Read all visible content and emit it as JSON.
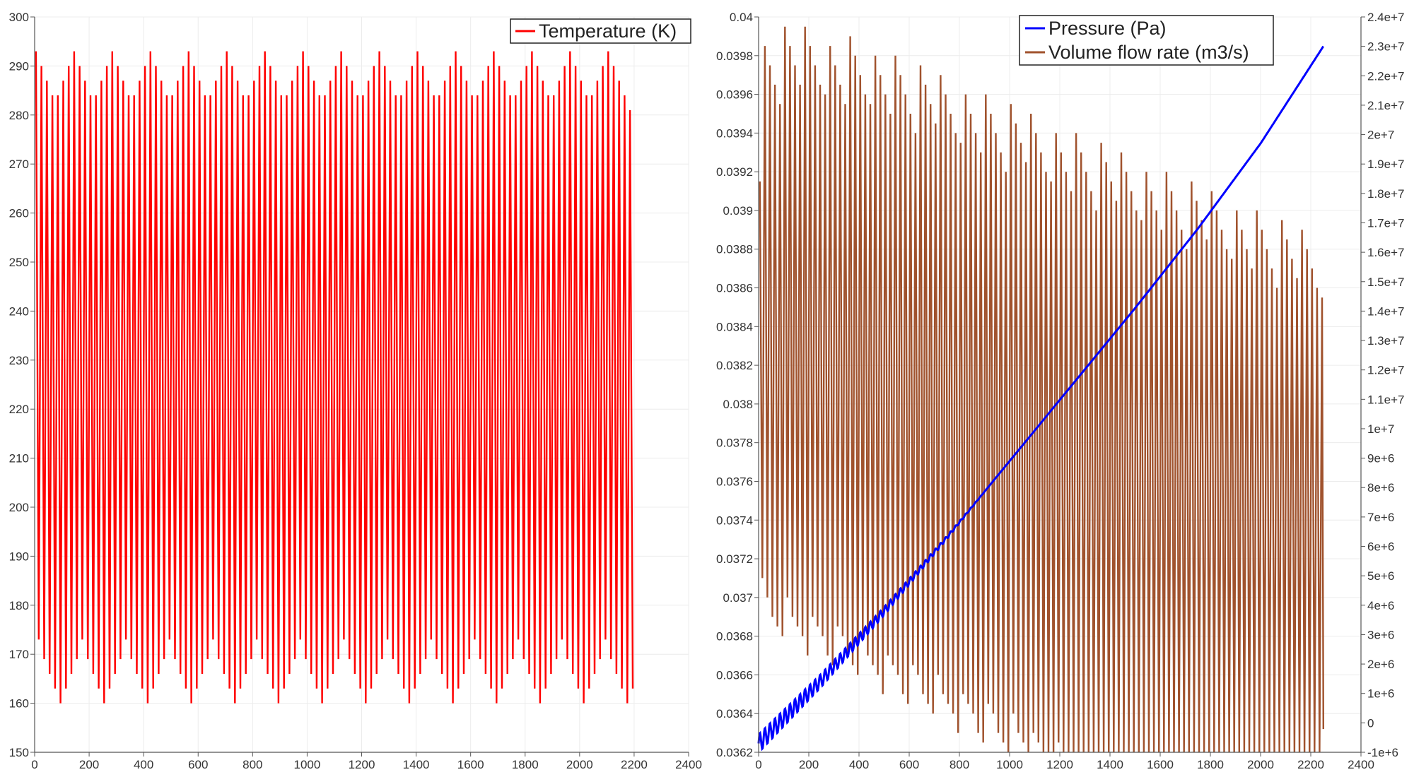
{
  "chart_data": [
    {
      "type": "line",
      "title": "",
      "xlabel": "",
      "ylabel": "",
      "xlim": [
        0,
        2400
      ],
      "ylim": [
        150,
        300
      ],
      "x_ticks": [
        0,
        200,
        400,
        600,
        800,
        1000,
        1200,
        1400,
        1600,
        1800,
        2000,
        2200,
        2400
      ],
      "y_ticks": [
        150,
        160,
        170,
        180,
        190,
        200,
        210,
        220,
        230,
        240,
        250,
        260,
        270,
        280,
        290,
        300
      ],
      "grid": true,
      "legend_position": "top-right",
      "series": [
        {
          "name": "Temperature (K)",
          "color": "#ff0000",
          "x_range": [
            0,
            2250
          ],
          "oscillation_period": 20,
          "peak_values": [
            293,
            290,
            287,
            284,
            284,
            287,
            290,
            293,
            290,
            287,
            284,
            284,
            287,
            290,
            293,
            290,
            287,
            284,
            284,
            287,
            290,
            293,
            290,
            287,
            284,
            284,
            287,
            290,
            293,
            290,
            287,
            284,
            284,
            287,
            290,
            293,
            290,
            287,
            284,
            284,
            287,
            290,
            293,
            290,
            287,
            284,
            284,
            287,
            290,
            293,
            290,
            287,
            284,
            284,
            287,
            290,
            293,
            290,
            287,
            284,
            284,
            287,
            290,
            293,
            290,
            287,
            284,
            284,
            287,
            290,
            293,
            290,
            287,
            284,
            284,
            287,
            290,
            293,
            290,
            287,
            284,
            284,
            287,
            290,
            293,
            290,
            287,
            284,
            284,
            287,
            290,
            293,
            290,
            287,
            284,
            284,
            287,
            290,
            293,
            290,
            287,
            284,
            284,
            287,
            290,
            293,
            290,
            287,
            284,
            281
          ],
          "trough_values": [
            173,
            169,
            166,
            163,
            160,
            163,
            166,
            169,
            173,
            169,
            166,
            163,
            160,
            163,
            166,
            169,
            173,
            169,
            166,
            163,
            160,
            163,
            166,
            169,
            173,
            169,
            166,
            163,
            160,
            163,
            166,
            169,
            173,
            169,
            166,
            163,
            160,
            163,
            166,
            169,
            173,
            169,
            166,
            163,
            160,
            163,
            166,
            169,
            173,
            169,
            166,
            163,
            160,
            163,
            166,
            169,
            173,
            169,
            166,
            163,
            160,
            163,
            166,
            169,
            173,
            169,
            166,
            163,
            160,
            163,
            166,
            169,
            173,
            169,
            166,
            163,
            160,
            163,
            166,
            169,
            173,
            169,
            166,
            163,
            160,
            163,
            166,
            169,
            173,
            169,
            166,
            163,
            160,
            163,
            166,
            169,
            173,
            169,
            166,
            163,
            160,
            163,
            166,
            169,
            173,
            169,
            166,
            163,
            160,
            163,
            166
          ]
        }
      ]
    },
    {
      "type": "line",
      "title": "",
      "xlabel": "",
      "ylabel": "",
      "xlim": [
        0,
        2400
      ],
      "ylim": [
        0.0362,
        0.04
      ],
      "y2lim": [
        -1000000,
        24000000
      ],
      "x_ticks": [
        0,
        200,
        400,
        600,
        800,
        1000,
        1200,
        1400,
        1600,
        1800,
        2000,
        2200,
        2400
      ],
      "y_ticks": [
        "0.0362",
        "0.0364",
        "0.0366",
        "0.0368",
        "0.037",
        "0.0372",
        "0.0374",
        "0.0376",
        "0.0378",
        "0.038",
        "0.0382",
        "0.0384",
        "0.0386",
        "0.0388",
        "0.039",
        "0.0392",
        "0.0394",
        "0.0396",
        "0.0398",
        "0.04"
      ],
      "y2_ticks": [
        "-1e+6",
        "0",
        "1e+6",
        "2e+6",
        "3e+6",
        "4e+6",
        "5e+6",
        "6e+6",
        "7e+6",
        "8e+6",
        "9e+6",
        "1e+7",
        "1.1e+7",
        "1.2e+7",
        "1.3e+7",
        "1.4e+7",
        "1.5e+7",
        "1.6e+7",
        "1.7e+7",
        "1.8e+7",
        "1.9e+7",
        "2e+7",
        "2.1e+7",
        "2.2e+7",
        "2.3e+7",
        "2.4e+7"
      ],
      "grid": true,
      "legend_position": "top-right",
      "series": [
        {
          "name": "Pressure (Pa)",
          "color": "#0000ff",
          "axis": "right",
          "x": [
            0,
            250,
            500,
            750,
            1000,
            1250,
            1500,
            1750,
            2000,
            2250
          ],
          "values": [
            -700000,
            1450000,
            3800000,
            6300000,
            8900000,
            11500000,
            14100000,
            16800000,
            19700000,
            23000000
          ],
          "ripple_period": 20
        },
        {
          "name": "Volume flow rate (m3/s)",
          "color": "#a0522d",
          "axis": "left",
          "x_range": [
            0,
            2250
          ],
          "oscillation_period": 20,
          "peak_values": [
            0.03915,
            0.03985,
            0.03975,
            0.03965,
            0.03955,
            0.03995,
            0.03985,
            0.03975,
            0.03965,
            0.03995,
            0.03985,
            0.03975,
            0.03965,
            0.0396,
            0.03985,
            0.03975,
            0.03965,
            0.03955,
            0.0399,
            0.0398,
            0.0397,
            0.0396,
            0.03955,
            0.0398,
            0.0397,
            0.0396,
            0.0395,
            0.0398,
            0.0397,
            0.0396,
            0.0395,
            0.0394,
            0.03975,
            0.03965,
            0.03955,
            0.03945,
            0.0397,
            0.0396,
            0.0395,
            0.0394,
            0.03935,
            0.0396,
            0.0395,
            0.0394,
            0.0393,
            0.0396,
            0.0395,
            0.0394,
            0.0393,
            0.0392,
            0.03955,
            0.03945,
            0.03935,
            0.03925,
            0.0395,
            0.0394,
            0.0393,
            0.0392,
            0.03915,
            0.0394,
            0.0393,
            0.0392,
            0.0391,
            0.0394,
            0.0393,
            0.0392,
            0.0391,
            0.039,
            0.03935,
            0.03925,
            0.03915,
            0.03905,
            0.0393,
            0.0392,
            0.0391,
            0.039,
            0.03895,
            0.0392,
            0.0391,
            0.039,
            0.0389,
            0.0392,
            0.0391,
            0.039,
            0.0389,
            0.0388,
            0.03915,
            0.03905,
            0.03895,
            0.03885,
            0.0391,
            0.039,
            0.0389,
            0.0388,
            0.03875,
            0.039,
            0.0389,
            0.0388,
            0.0387,
            0.039,
            0.0389,
            0.0388,
            0.0387,
            0.0386,
            0.03895,
            0.03885,
            0.03875,
            0.03865,
            0.0389,
            0.0388,
            0.0387,
            0.0386,
            0.03855
          ],
          "trough_values": [
            0.0371,
            0.037,
            0.0369,
            0.03685,
            0.0368,
            0.037,
            0.0369,
            0.03685,
            0.0368,
            0.0367,
            0.0369,
            0.03685,
            0.0368,
            0.0367,
            0.03665,
            0.03685,
            0.0368,
            0.0367,
            0.03665,
            0.0366,
            0.0368,
            0.0367,
            0.03665,
            0.0366,
            0.0365,
            0.0367,
            0.03665,
            0.0366,
            0.0365,
            0.03645,
            0.03665,
            0.0366,
            0.0365,
            0.03645,
            0.0364,
            0.0366,
            0.0365,
            0.03645,
            0.0364,
            0.0363,
            0.0365,
            0.03645,
            0.0364,
            0.0363,
            0.03625,
            0.03645,
            0.0364,
            0.0363,
            0.03625,
            0.0362,
            0.0364,
            0.0363,
            0.03625,
            0.0362,
            0.0363,
            0.03625,
            0.0362,
            0.0362,
            0.0362,
            0.03625,
            0.0362,
            0.0362,
            0.0362,
            0.0362,
            0.0362,
            0.0362,
            0.0362,
            0.0362,
            0.0362,
            0.0362,
            0.0362,
            0.0362,
            0.0362,
            0.0362,
            0.0362,
            0.0362,
            0.0362,
            0.0362,
            0.0362,
            0.0362,
            0.0362,
            0.0362,
            0.0362,
            0.0362,
            0.0362,
            0.0362,
            0.0362,
            0.0362,
            0.0362,
            0.0362,
            0.0362,
            0.0362,
            0.0362,
            0.0362,
            0.0362,
            0.0362,
            0.0362,
            0.0362,
            0.0362,
            0.0362,
            0.0362,
            0.0362,
            0.0362,
            0.0362,
            0.0362,
            0.0362,
            0.0362,
            0.0362,
            0.0362,
            0.0362,
            0.0362,
            0.0362,
            0.03632
          ]
        }
      ]
    }
  ]
}
